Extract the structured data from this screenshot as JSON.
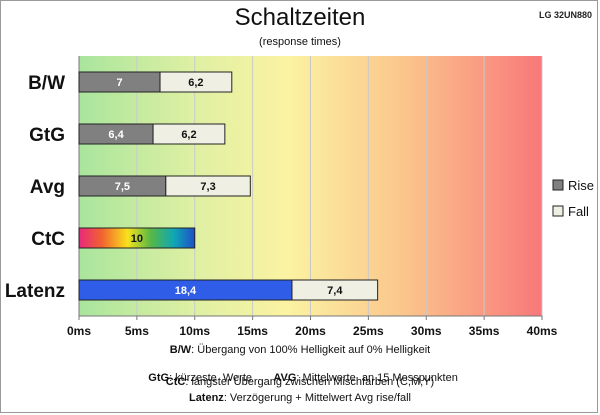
{
  "header": {
    "title": "Schaltzeiten",
    "subtitle": "(response times)",
    "model": "LG 32UN880"
  },
  "chart_data": {
    "type": "bar",
    "orientation": "horizontal",
    "stacked": true,
    "categories": [
      "B/W",
      "GtG",
      "Avg",
      "CtC",
      "Latenz"
    ],
    "series": [
      {
        "name": "Rise",
        "values": [
          7,
          6.4,
          7.5,
          null,
          null
        ],
        "labels": [
          "7",
          "6,4",
          "7,5",
          "",
          ""
        ],
        "color": "#808080"
      },
      {
        "name": "Fall",
        "values": [
          6.2,
          6.2,
          7.3,
          null,
          null
        ],
        "labels": [
          "6,2",
          "6,2",
          "7,3",
          "",
          ""
        ],
        "color": "#f0efe4"
      }
    ],
    "special_bars": [
      {
        "category": "CtC",
        "value": 10,
        "label": "10",
        "fill": "rainbow"
      },
      {
        "category": "Latenz",
        "value": 18.4,
        "label": "18,4",
        "fill": "#2f5de8",
        "extra_value": 7.4,
        "extra_label": "7,4",
        "extra_color": "#f0efe4"
      }
    ],
    "x_ticks": [
      "0ms",
      "5ms",
      "10ms",
      "15ms",
      "20ms",
      "25ms",
      "30ms",
      "35ms",
      "40ms"
    ],
    "xlim": [
      0,
      40
    ],
    "grid": true,
    "background": "gradient green-yellow-red",
    "legend_position": "right"
  },
  "footnotes": [
    {
      "key": "B/W",
      "text": ":  Übergang von 100% Helligkeit auf 0% Helligkeit"
    },
    {
      "key": "GtG",
      "text": ": kürzeste  Werte       ",
      "key2": "AVG",
      "text2": ": Mittelwerte  an 15 Messpunkten"
    },
    {
      "key": "CtC",
      "text": ": längster Übergang  zwischen Mischfarben  (C,M,Y)"
    },
    {
      "key": "Latenz",
      "text": ": Verzögerung  + Mittelwert Avg rise/fall"
    }
  ]
}
